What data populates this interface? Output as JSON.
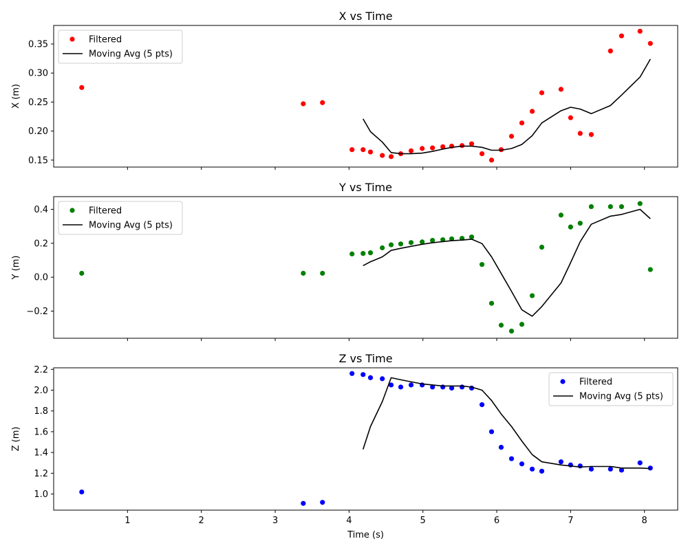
{
  "x_axis_label": "Time (s)",
  "x_ticks": [
    1,
    2,
    3,
    4,
    5,
    6,
    7,
    8
  ],
  "x_range": [
    0.0,
    8.45
  ],
  "chart_data": [
    {
      "type": "scatter",
      "title": "X vs Time",
      "ylabel": "X (m)",
      "ylim": [
        0.138,
        0.382
      ],
      "yticks": [
        0.15,
        0.2,
        0.25,
        0.3,
        0.35
      ],
      "ytick_labels": [
        "0.15",
        "0.20",
        "0.25",
        "0.30",
        "0.35"
      ],
      "legend_position": "upper left",
      "series": [
        {
          "name": "Filtered",
          "kind": "scatter",
          "color": "#ff0000",
          "x": [
            0.38,
            3.38,
            3.64,
            4.04,
            4.19,
            4.29,
            4.45,
            4.57,
            4.7,
            4.84,
            4.99,
            5.13,
            5.27,
            5.39,
            5.53,
            5.66,
            5.8,
            5.93,
            6.06,
            6.2,
            6.34,
            6.48,
            6.61,
            6.87,
            7.0,
            7.13,
            7.28,
            7.54,
            7.69,
            7.94,
            8.08
          ],
          "y": [
            0.275,
            0.247,
            0.249,
            0.168,
            0.168,
            0.164,
            0.158,
            0.156,
            0.161,
            0.166,
            0.17,
            0.171,
            0.173,
            0.174,
            0.175,
            0.178,
            0.161,
            0.15,
            0.168,
            0.191,
            0.214,
            0.234,
            0.266,
            0.272,
            0.223,
            0.196,
            0.194,
            0.338,
            0.364,
            0.372,
            0.351
          ]
        },
        {
          "name": "Moving Avg (5 pts)",
          "kind": "line",
          "color": "#000000",
          "x": [
            4.19,
            4.29,
            4.45,
            4.57,
            4.7,
            4.84,
            4.99,
            5.13,
            5.27,
            5.39,
            5.53,
            5.66,
            5.8,
            5.93,
            6.06,
            6.2,
            6.34,
            6.48,
            6.61,
            6.87,
            7.0,
            7.13,
            7.28,
            7.54,
            7.69,
            7.94,
            8.08
          ],
          "y": [
            0.221,
            0.199,
            0.181,
            0.163,
            0.161,
            0.161,
            0.162,
            0.165,
            0.169,
            0.172,
            0.174,
            0.174,
            0.172,
            0.167,
            0.167,
            0.17,
            0.177,
            0.192,
            0.214,
            0.235,
            0.241,
            0.238,
            0.23,
            0.244,
            0.262,
            0.293,
            0.324
          ]
        }
      ]
    },
    {
      "type": "scatter",
      "title": "Y vs Time",
      "ylabel": "Y (m)",
      "ylim": [
        -0.36,
        0.475
      ],
      "yticks": [
        -0.2,
        0.0,
        0.2,
        0.4
      ],
      "ytick_labels": [
        "−0.2",
        "0.0",
        "0.2",
        "0.4"
      ],
      "legend_position": "upper left",
      "series": [
        {
          "name": "Filtered",
          "kind": "scatter",
          "color": "#008000",
          "x": [
            0.38,
            3.38,
            3.64,
            4.04,
            4.19,
            4.29,
            4.45,
            4.57,
            4.7,
            4.84,
            4.99,
            5.13,
            5.27,
            5.39,
            5.53,
            5.66,
            5.8,
            5.93,
            6.06,
            6.2,
            6.34,
            6.48,
            6.61,
            6.87,
            7.0,
            7.13,
            7.28,
            7.54,
            7.69,
            7.94,
            8.08
          ],
          "y": [
            0.023,
            0.023,
            0.023,
            0.137,
            0.14,
            0.144,
            0.173,
            0.191,
            0.196,
            0.204,
            0.208,
            0.217,
            0.221,
            0.226,
            0.229,
            0.237,
            0.075,
            -0.154,
            -0.283,
            -0.318,
            -0.278,
            -0.109,
            0.177,
            0.366,
            0.296,
            0.318,
            0.416,
            0.416,
            0.416,
            0.434,
            0.045
          ]
        },
        {
          "name": "Moving Avg (5 pts)",
          "kind": "line",
          "color": "#000000",
          "x": [
            4.19,
            4.29,
            4.45,
            4.57,
            4.7,
            4.84,
            4.99,
            5.13,
            5.27,
            5.39,
            5.53,
            5.66,
            5.8,
            5.93,
            6.06,
            6.2,
            6.34,
            6.48,
            6.61,
            6.87,
            7.0,
            7.13,
            7.28,
            7.54,
            7.69,
            7.94,
            8.08
          ],
          "y": [
            0.068,
            0.091,
            0.12,
            0.158,
            0.17,
            0.182,
            0.194,
            0.203,
            0.21,
            0.215,
            0.219,
            0.224,
            0.198,
            0.12,
            0.022,
            -0.084,
            -0.192,
            -0.23,
            -0.173,
            -0.034,
            0.086,
            0.209,
            0.312,
            0.36,
            0.37,
            0.4,
            0.345
          ]
        }
      ]
    },
    {
      "type": "scatter",
      "title": "Z vs Time",
      "ylabel": "Z (m)",
      "ylim": [
        0.845,
        2.215
      ],
      "yticks": [
        1.0,
        1.2,
        1.4,
        1.6,
        1.8,
        2.0,
        2.2
      ],
      "ytick_labels": [
        "1.0",
        "1.2",
        "1.4",
        "1.6",
        "1.8",
        "2.0",
        "2.2"
      ],
      "legend_position": "upper right",
      "series": [
        {
          "name": "Filtered",
          "kind": "scatter",
          "color": "#0000ff",
          "x": [
            0.38,
            3.38,
            3.64,
            4.04,
            4.19,
            4.29,
            4.45,
            4.57,
            4.7,
            4.84,
            4.99,
            5.13,
            5.27,
            5.39,
            5.53,
            5.66,
            5.8,
            5.93,
            6.06,
            6.2,
            6.34,
            6.48,
            6.61,
            6.87,
            7.0,
            7.13,
            7.28,
            7.54,
            7.69,
            7.94,
            8.08
          ],
          "y": [
            1.02,
            0.91,
            0.92,
            2.16,
            2.15,
            2.12,
            2.11,
            2.05,
            2.03,
            2.05,
            2.05,
            2.03,
            2.03,
            2.02,
            2.03,
            2.02,
            1.86,
            1.6,
            1.45,
            1.34,
            1.29,
            1.24,
            1.22,
            1.31,
            1.28,
            1.27,
            1.24,
            1.24,
            1.23,
            1.3,
            1.25
          ]
        },
        {
          "name": "Moving Avg (5 pts)",
          "kind": "line",
          "color": "#000000",
          "x": [
            4.19,
            4.29,
            4.45,
            4.57,
            4.7,
            4.84,
            4.99,
            5.13,
            5.27,
            5.39,
            5.53,
            5.66,
            5.8,
            5.93,
            6.06,
            6.2,
            6.34,
            6.48,
            6.61,
            6.87,
            7.0,
            7.13,
            7.28,
            7.54,
            7.69,
            7.94,
            8.08
          ],
          "y": [
            1.43,
            1.65,
            1.89,
            2.12,
            2.1,
            2.08,
            2.06,
            2.05,
            2.04,
            2.04,
            2.04,
            2.03,
            2.0,
            1.9,
            1.77,
            1.65,
            1.51,
            1.38,
            1.31,
            1.28,
            1.27,
            1.26,
            1.265,
            1.265,
            1.25,
            1.25,
            1.245
          ]
        }
      ]
    }
  ]
}
